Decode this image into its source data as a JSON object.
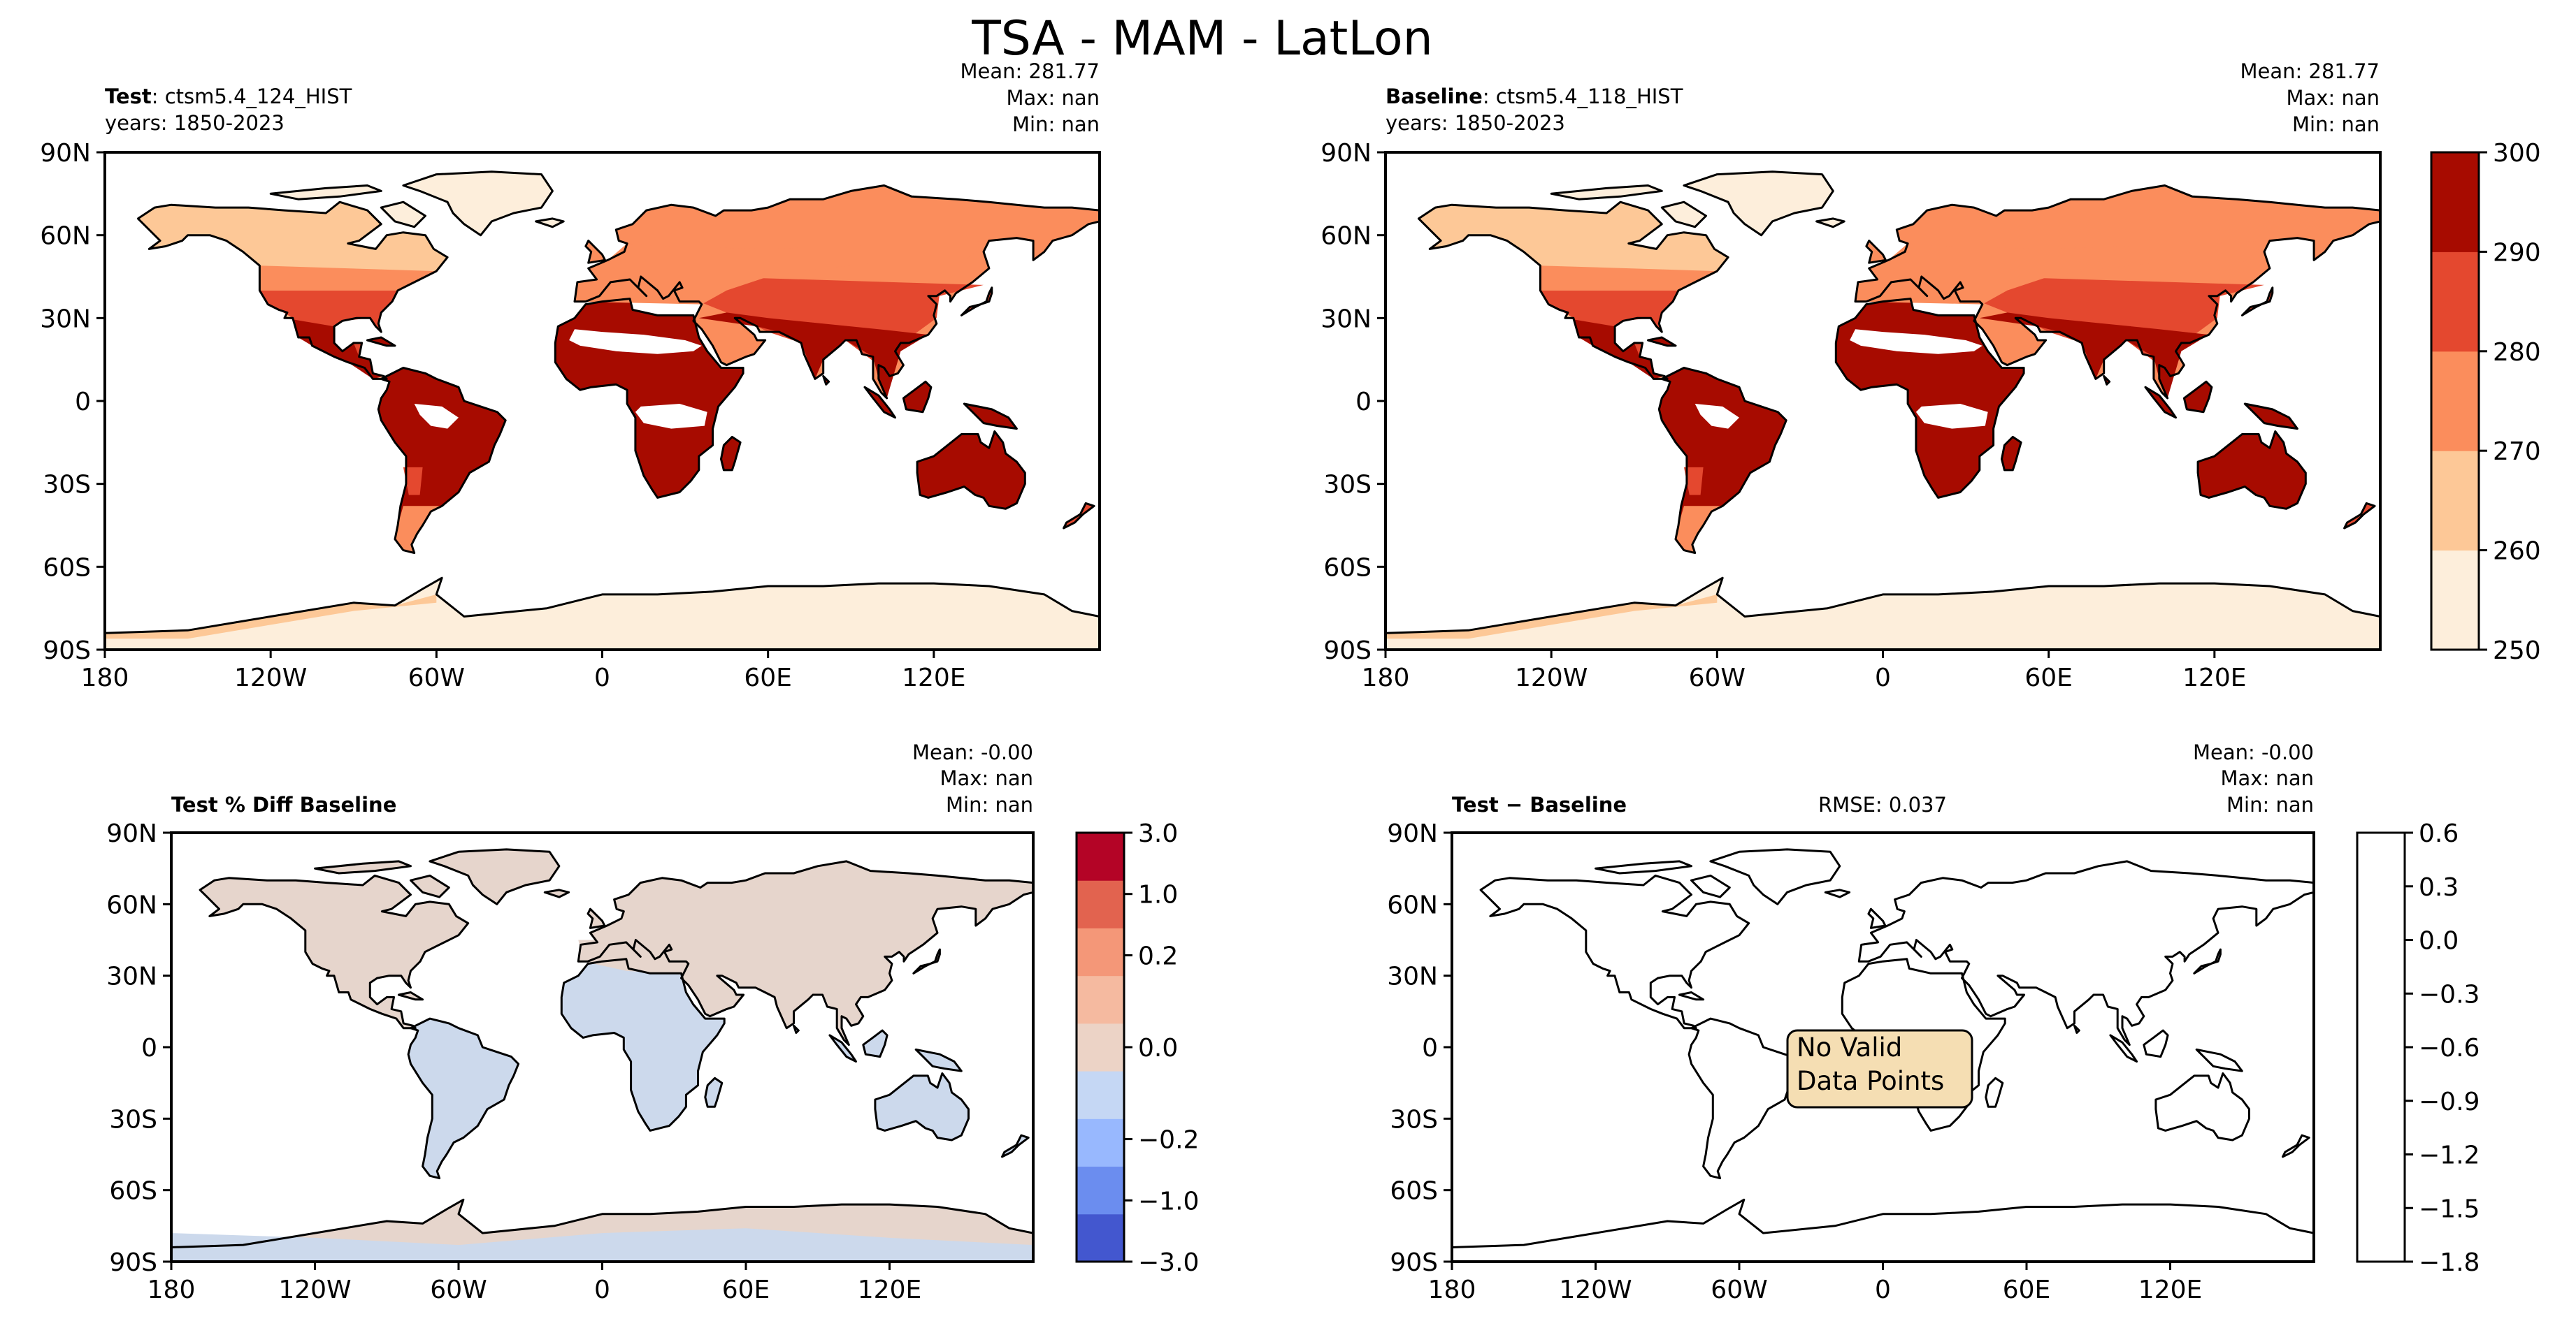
{
  "figure_title": "TSA - MAM - LatLon",
  "colors": {
    "abs_levels": [
      "#fdeedb",
      "#fdc897",
      "#fb8d5c",
      "#e4482f",
      "#a70b00"
    ],
    "diff_levels": [
      "#4357cf",
      "#6b8def",
      "#98b8fe",
      "#c5d7f4",
      "#ecd3c6",
      "#f5baa0",
      "#f49778",
      "#e2634f",
      "#b40426"
    ],
    "land_test": "#b40f03",
    "pct_pos": "#e6d5cc",
    "pct_neg": "#ccd9ec",
    "box_face": "#f5deb3"
  },
  "panels": {
    "test": {
      "name": "Test",
      "case": ": ctsm5.4_124_HIST",
      "years": "years: 1850-2023",
      "mean": "Mean: 281.77",
      "max": "Max:   nan",
      "min": "Min:   nan"
    },
    "baseline": {
      "name": "Baseline",
      "case": ": ctsm5.4_118_HIST",
      "years": "years: 1850-2023",
      "mean": "Mean: 281.77",
      "max": "Max:   nan",
      "min": "Min:   nan"
    },
    "pctdiff": {
      "title": "Test % Diff Baseline",
      "mean": "Mean: -0.00",
      "max": "Max:   nan",
      "min": "Min:   nan"
    },
    "diff": {
      "title": "Test − Baseline",
      "rmse": "RMSE: 0.037",
      "mean": "Mean: -0.00",
      "max": "Max:   nan",
      "min": "Min:   nan",
      "no_data_line1": "No Valid",
      "no_data_line2": "Data Points"
    }
  },
  "chart_data": [
    {
      "type": "heatmap",
      "title": "Test: ctsm5.4_124_HIST",
      "x_ticks": [
        "180",
        "120W",
        "60W",
        "0",
        "60E",
        "120E"
      ],
      "x_tick_values": [
        -180,
        -120,
        -60,
        0,
        60,
        120
      ],
      "y_ticks": [
        "90N",
        "60N",
        "30N",
        "0",
        "30S",
        "60S",
        "90S"
      ],
      "y_tick_values": [
        90,
        60,
        30,
        0,
        -30,
        -60,
        -90
      ],
      "xlim": [
        -180,
        180
      ],
      "ylim": [
        -90,
        90
      ],
      "colorbar": {
        "ticks": [
          "300",
          "290",
          "280",
          "270",
          "260",
          "250"
        ],
        "values": [
          300,
          290,
          280,
          270,
          260,
          250
        ]
      }
    },
    {
      "type": "heatmap",
      "title": "Baseline: ctsm5.4_118_HIST",
      "xlim": [
        -180,
        180
      ],
      "ylim": [
        -90,
        90
      ]
    },
    {
      "type": "heatmap",
      "title": "Test % Diff Baseline",
      "colorbar": {
        "ticks": [
          "3.0",
          "1.0",
          "0.2",
          "0.0",
          "−0.2",
          "−1.0",
          "−3.0"
        ],
        "values": [
          3.0,
          1.0,
          0.2,
          0.0,
          -0.2,
          -1.0,
          -3.0
        ]
      }
    },
    {
      "type": "heatmap",
      "title": "Test − Baseline",
      "colorbar": {
        "ticks": [
          "0.6",
          "0.3",
          "0.0",
          "−0.3",
          "−0.6",
          "−0.9",
          "−1.2",
          "−1.5",
          "−1.8"
        ],
        "values": [
          0.6,
          0.3,
          0.0,
          -0.3,
          -0.6,
          -0.9,
          -1.2,
          -1.5,
          -1.8
        ]
      }
    }
  ]
}
